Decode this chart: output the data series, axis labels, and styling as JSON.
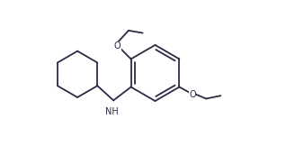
{
  "bg_color": "#ffffff",
  "line_color": "#2b2b45",
  "line_width": 1.3,
  "font_size": 7.0,
  "nh_label": "NH",
  "o_label": "O",
  "figsize": [
    3.18,
    1.62
  ],
  "dpi": 100,
  "xlim": [
    -4.5,
    5.5
  ],
  "ylim": [
    -2.8,
    3.2
  ]
}
